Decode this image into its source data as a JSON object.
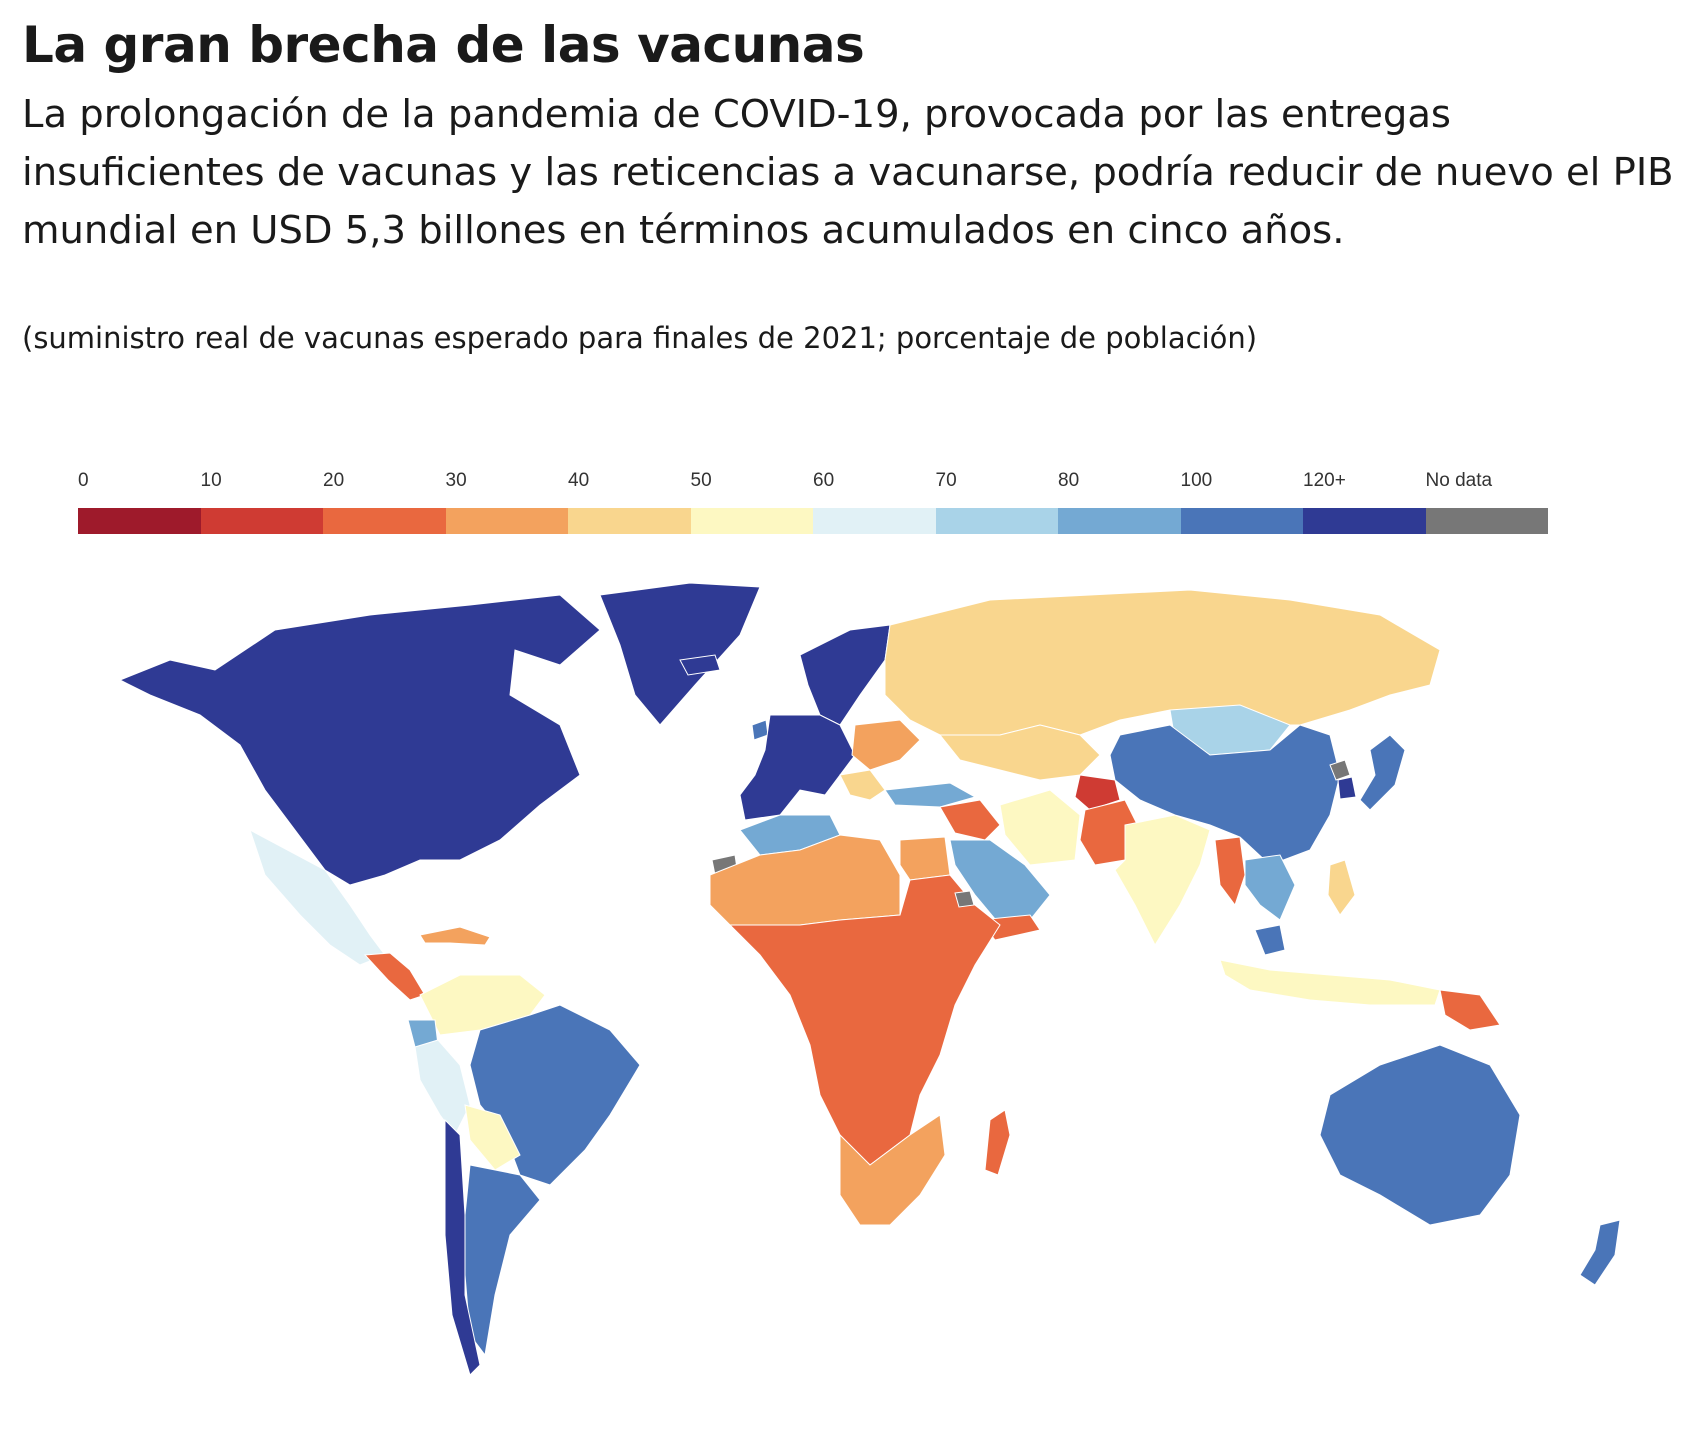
{
  "header": {
    "title": "La gran brecha de las vacunas",
    "subtitle": "La prolongación de la pandemia de COVID-19, provocada por las entregas insuficientes de vacunas y las reticencias a vacunarse, podría reducir de nuevo el PIB mundial en USD 5,3 billones en términos acumulados en cinco años.",
    "note": "(suministro real de vacunas esperado para finales de 2021; porcentaje de población)"
  },
  "legend": {
    "items": [
      {
        "label": "0",
        "color": "#9e1a2b"
      },
      {
        "label": "10",
        "color": "#cf3b33"
      },
      {
        "label": "20",
        "color": "#e9683f"
      },
      {
        "label": "30",
        "color": "#f3a25e"
      },
      {
        "label": "40",
        "color": "#f9d68e"
      },
      {
        "label": "50",
        "color": "#fdf8c2"
      },
      {
        "label": "60",
        "color": "#e1f1f6"
      },
      {
        "label": "70",
        "color": "#a9d3e8"
      },
      {
        "label": "80",
        "color": "#74a9d3"
      },
      {
        "label": "100",
        "color": "#4a75b8"
      },
      {
        "label": "120+",
        "color": "#2f3a94"
      },
      {
        "label": "No data",
        "color": "#777777"
      }
    ]
  },
  "map": {
    "regions": [
      {
        "name": "north-america",
        "bin": "120+"
      },
      {
        "name": "greenland",
        "bin": "120+"
      },
      {
        "name": "mexico",
        "bin": "60"
      },
      {
        "name": "central-america",
        "bin": "20"
      },
      {
        "name": "caribbean",
        "bin": "30"
      },
      {
        "name": "colombia-venezuela",
        "bin": "50"
      },
      {
        "name": "ecuador",
        "bin": "80"
      },
      {
        "name": "peru",
        "bin": "60"
      },
      {
        "name": "brazil",
        "bin": "100"
      },
      {
        "name": "bolivia-paraguay",
        "bin": "50"
      },
      {
        "name": "southern-cone",
        "bin": "100"
      },
      {
        "name": "chile",
        "bin": "120+"
      },
      {
        "name": "western-europe",
        "bin": "120+"
      },
      {
        "name": "scandinavia",
        "bin": "120+"
      },
      {
        "name": "iceland",
        "bin": "120+"
      },
      {
        "name": "ireland",
        "bin": "100"
      },
      {
        "name": "eastern-europe",
        "bin": "30"
      },
      {
        "name": "balkans",
        "bin": "40"
      },
      {
        "name": "russia",
        "bin": "40"
      },
      {
        "name": "central-asia",
        "bin": "40"
      },
      {
        "name": "turkey",
        "bin": "80"
      },
      {
        "name": "syria-iraq",
        "bin": "20"
      },
      {
        "name": "iran",
        "bin": "50"
      },
      {
        "name": "arabian-peninsula",
        "bin": "80"
      },
      {
        "name": "yemen",
        "bin": "20"
      },
      {
        "name": "afghanistan",
        "bin": "10"
      },
      {
        "name": "pakistan",
        "bin": "20"
      },
      {
        "name": "india",
        "bin": "50"
      },
      {
        "name": "myanmar",
        "bin": "20"
      },
      {
        "name": "mongolia",
        "bin": "70"
      },
      {
        "name": "china",
        "bin": "100"
      },
      {
        "name": "korea",
        "bin": "120+"
      },
      {
        "name": "north-korea",
        "bin": "No data"
      },
      {
        "name": "japan",
        "bin": "100"
      },
      {
        "name": "indochina",
        "bin": "80"
      },
      {
        "name": "philippines",
        "bin": "40"
      },
      {
        "name": "indonesia",
        "bin": "50"
      },
      {
        "name": "malaysia",
        "bin": "100"
      },
      {
        "name": "papua-new-guinea",
        "bin": "20"
      },
      {
        "name": "australia",
        "bin": "100"
      },
      {
        "name": "new-zealand",
        "bin": "100"
      },
      {
        "name": "maghreb",
        "bin": "80"
      },
      {
        "name": "sahel",
        "bin": "30"
      },
      {
        "name": "egypt",
        "bin": "30"
      },
      {
        "name": "central-africa",
        "bin": "20"
      },
      {
        "name": "southern-africa",
        "bin": "30"
      },
      {
        "name": "madagascar",
        "bin": "20"
      },
      {
        "name": "western-sahara",
        "bin": "No data"
      },
      {
        "name": "eritrea",
        "bin": "No data"
      }
    ]
  }
}
